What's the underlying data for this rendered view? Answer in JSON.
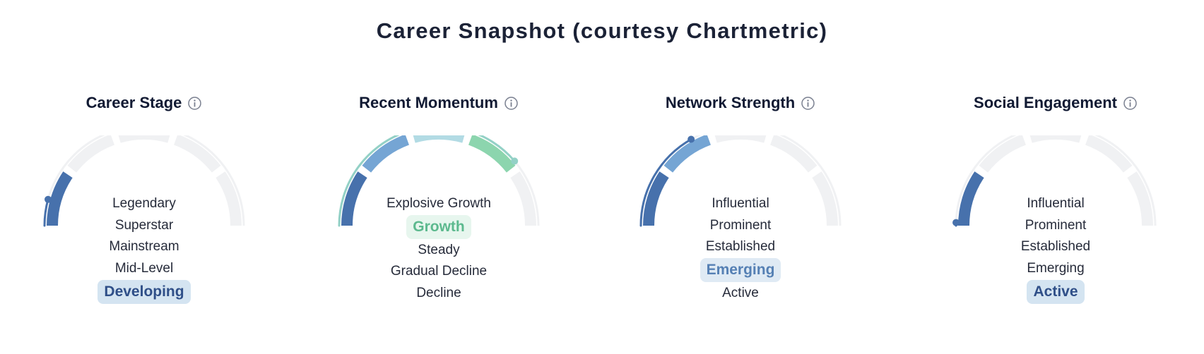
{
  "title": "Career Snapshot (courtesy Chartmetric)",
  "colors": {
    "track": "#f0f1f3",
    "blue_dark": "#4771ac",
    "blue_mid": "#75a5d4",
    "teal_light": "#b2dbe4",
    "green": "#8cd5ae"
  },
  "cards": [
    {
      "title": "Career Stage",
      "icon": "info-icon",
      "levels": [
        "Legendary",
        "Superstar",
        "Mainstream",
        "Mid-Level",
        "Developing"
      ],
      "selected_index": 4,
      "selected_color": "#2f4f88",
      "selected_bg": "#d4e4f1",
      "segments_filled": 1,
      "segment_partial": 0,
      "segment_colors": [
        "#4771ac"
      ],
      "outer_arc": {
        "fraction": 0.085,
        "color": "#4771ac"
      }
    },
    {
      "title": "Recent Momentum",
      "icon": "info-icon",
      "levels": [
        "Explosive Growth",
        "Growth",
        "Steady",
        "Gradual Decline",
        "Decline"
      ],
      "selected_index": 1,
      "selected_color": "#5cb98e",
      "selected_bg": "#e7f6ee",
      "segments_filled": 4,
      "segment_partial": 0,
      "segment_colors": [
        "#4771ac",
        "#75a5d4",
        "#b2dbe4",
        "#8cd5ae"
      ],
      "outer_arc": {
        "fraction": 0.775,
        "color": "#93d1c6"
      }
    },
    {
      "title": "Network Strength",
      "icon": "info-icon",
      "levels": [
        "Influential",
        "Prominent",
        "Established",
        "Emerging",
        "Active"
      ],
      "selected_index": 3,
      "selected_color": "#5580b4",
      "selected_bg": "#dfeaf4",
      "segments_filled": 2,
      "segment_partial": 0,
      "segment_colors": [
        "#4771ac",
        "#75a5d4"
      ],
      "outer_arc": {
        "fraction": 0.335,
        "color": "#4771ac"
      }
    },
    {
      "title": "Social Engagement",
      "icon": "info-icon",
      "levels": [
        "Influential",
        "Prominent",
        "Established",
        "Emerging",
        "Active"
      ],
      "selected_index": 4,
      "selected_color": "#2f4f88",
      "selected_bg": "#d4e4f1",
      "segments_filled": 1,
      "segment_partial": 0,
      "segment_colors": [
        "#4771ac"
      ],
      "outer_arc": {
        "fraction": 0.01,
        "color": "#4771ac"
      }
    }
  ]
}
